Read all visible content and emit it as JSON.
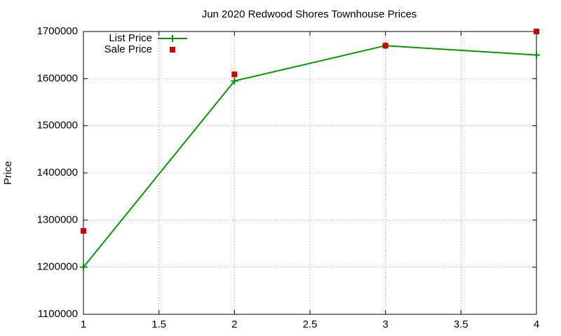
{
  "chart_data": {
    "type": "line",
    "title": "Jun 2020 Redwood Shores Townhouse Prices",
    "y_label": "Price",
    "x": [
      1,
      2,
      3,
      4
    ],
    "series": [
      {
        "name": "List Price",
        "color": "#009900",
        "style": "linespoints",
        "values": [
          1200000,
          1595000,
          1670000,
          1650000
        ]
      },
      {
        "name": "Sale Price",
        "color": "#cc0000",
        "style": "points",
        "values": [
          1277000,
          1609000,
          1670000,
          1700000
        ]
      }
    ],
    "xlim": [
      1,
      4
    ],
    "xticks": [
      1,
      1.5,
      2,
      2.5,
      3,
      3.5,
      4
    ],
    "ylim": [
      1100000,
      1700000
    ],
    "yticks": [
      1100000,
      1200000,
      1300000,
      1400000,
      1500000,
      1600000,
      1700000
    ],
    "grid": true,
    "legend": "top-left"
  }
}
